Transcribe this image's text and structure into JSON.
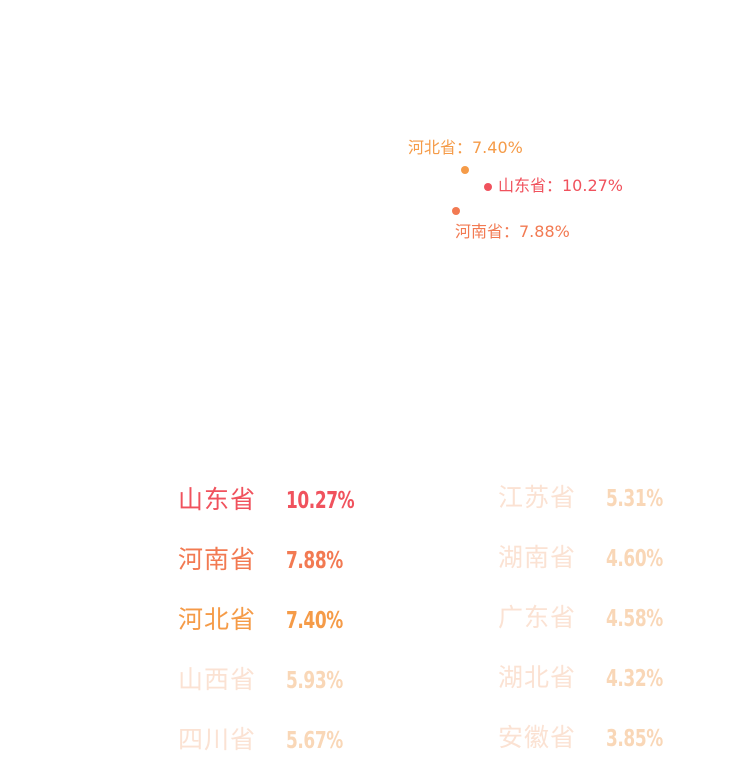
{
  "colors": {
    "rank1": "#f0525d",
    "rank2": "#f27a52",
    "rank3": "#f59b48",
    "faded_name": "#fbe2d3",
    "faded_value": "#f9d7b7"
  },
  "map": {
    "points": [
      {
        "name": "河北省",
        "label": "河北省：7.40%",
        "color": "#f59b48"
      },
      {
        "name": "山东省",
        "label": "山东省：10.27%",
        "color": "#f0525d"
      },
      {
        "name": "河南省",
        "label": "河南省：7.88%",
        "color": "#f27a52"
      }
    ]
  },
  "ranking": {
    "left": [
      {
        "province": "山东省",
        "value": "10.27%"
      },
      {
        "province": "河南省",
        "value": "7.88%"
      },
      {
        "province": "河北省",
        "value": "7.40%"
      },
      {
        "province": "山西省",
        "value": "5.93%"
      },
      {
        "province": "四川省",
        "value": "5.67%"
      }
    ],
    "right": [
      {
        "province": "江苏省",
        "value": "5.31%"
      },
      {
        "province": "湖南省",
        "value": "4.60%"
      },
      {
        "province": "广东省",
        "value": "4.58%"
      },
      {
        "province": "湖北省",
        "value": "4.32%"
      },
      {
        "province": "安徽省",
        "value": "3.85%"
      }
    ]
  }
}
